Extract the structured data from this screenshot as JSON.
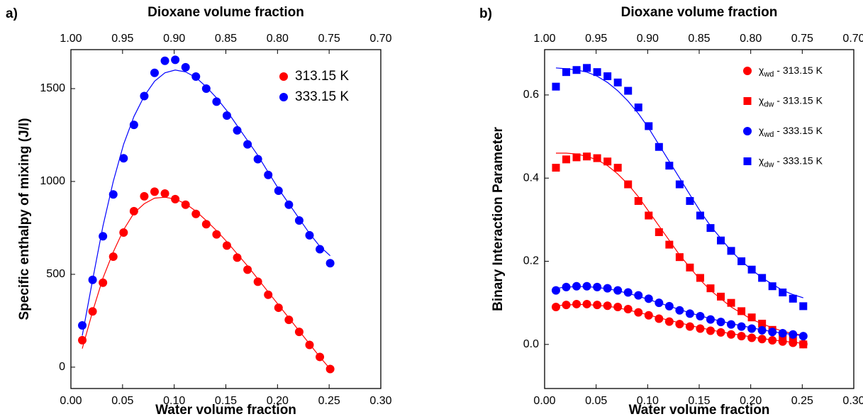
{
  "chart_data": [
    {
      "type": "scatter",
      "panel_label": "a)",
      "x2label": "Dioxane volume fraction",
      "xlabel": "Water volume fraction",
      "ylabel": "Specific enthalpy of mixing (J/l)",
      "x": [
        0.011,
        0.021,
        0.031,
        0.041,
        0.051,
        0.061,
        0.071,
        0.081,
        0.091,
        0.101,
        0.111,
        0.121,
        0.131,
        0.141,
        0.151,
        0.161,
        0.171,
        0.181,
        0.191,
        0.201,
        0.211,
        0.221,
        0.231,
        0.241,
        0.251
      ],
      "series": [
        {
          "name": "313.15 K",
          "color": "#ff0000",
          "marker": "circle",
          "values": [
            145,
            300,
            455,
            595,
            725,
            840,
            920,
            945,
            935,
            905,
            875,
            825,
            770,
            715,
            655,
            590,
            525,
            460,
            390,
            320,
            255,
            190,
            120,
            55,
            -10
          ],
          "fit": [
            100,
            300,
            480,
            620,
            740,
            830,
            880,
            910,
            915,
            905,
            880,
            840,
            790,
            735,
            675,
            610,
            545,
            475,
            405,
            335,
            265,
            195,
            125,
            55,
            -10
          ]
        },
        {
          "name": "333.15 K",
          "color": "#0000ff",
          "marker": "circle",
          "values": [
            225,
            470,
            705,
            930,
            1125,
            1305,
            1460,
            1585,
            1650,
            1655,
            1615,
            1565,
            1500,
            1430,
            1355,
            1275,
            1200,
            1120,
            1035,
            950,
            875,
            790,
            710,
            635,
            560
          ],
          "fit": [
            170,
            470,
            760,
            1000,
            1200,
            1350,
            1460,
            1540,
            1585,
            1600,
            1590,
            1560,
            1510,
            1450,
            1380,
            1300,
            1220,
            1140,
            1050,
            960,
            880,
            800,
            720,
            650,
            600
          ]
        }
      ],
      "xlim": [
        0,
        0.3
      ],
      "xticks": [
        {
          "value": 0,
          "label": "0.00"
        },
        {
          "value": 0.05,
          "label": "0.05"
        },
        {
          "value": 0.1,
          "label": "0.10"
        },
        {
          "value": 0.15,
          "label": "0.15"
        },
        {
          "value": 0.2,
          "label": "0.20"
        },
        {
          "value": 0.25,
          "label": "0.25"
        },
        {
          "value": 0.3,
          "label": "0.30"
        }
      ],
      "x2lim": [
        1.0,
        0.7
      ],
      "x2ticks": [
        {
          "value": 1.0,
          "label": "1.00"
        },
        {
          "value": 0.95,
          "label": "0.95"
        },
        {
          "value": 0.9,
          "label": "0.90"
        },
        {
          "value": 0.85,
          "label": "0.85"
        },
        {
          "value": 0.8,
          "label": "0.80"
        },
        {
          "value": 0.75,
          "label": "0.75"
        },
        {
          "value": 0.7,
          "label": "0.70"
        }
      ],
      "ylim": [
        -115,
        1710
      ],
      "yticks": [
        0,
        500,
        1000,
        1500
      ],
      "legend": "upper right"
    },
    {
      "type": "scatter",
      "panel_label": "b)",
      "x2label": "Dioxane volume fraction",
      "xlabel": "Water volume fraction",
      "ylabel": "Binary Interaction Parameter",
      "x": [
        0.011,
        0.021,
        0.031,
        0.041,
        0.051,
        0.061,
        0.071,
        0.081,
        0.091,
        0.101,
        0.111,
        0.121,
        0.131,
        0.141,
        0.151,
        0.161,
        0.171,
        0.181,
        0.191,
        0.201,
        0.211,
        0.221,
        0.231,
        0.241,
        0.251
      ],
      "series": [
        {
          "name": "χwd - 313.15 K",
          "color": "#ff0000",
          "marker": "circle",
          "values": [
            0.09,
            0.095,
            0.097,
            0.097,
            0.095,
            0.093,
            0.09,
            0.085,
            0.077,
            0.07,
            0.062,
            0.055,
            0.049,
            0.043,
            0.038,
            0.033,
            0.029,
            0.024,
            0.02,
            0.016,
            0.013,
            0.01,
            0.007,
            0.004,
            0.001
          ],
          "fit": [
            0.093,
            0.095,
            0.096,
            0.096,
            0.094,
            0.092,
            0.088,
            0.083,
            0.077,
            0.071,
            0.064,
            0.058,
            0.052,
            0.046,
            0.04,
            0.035,
            0.03,
            0.026,
            0.022,
            0.018,
            0.014,
            0.011,
            0.008,
            0.005,
            0.003
          ]
        },
        {
          "name": "χdw - 313.15 K",
          "color": "#ff0000",
          "marker": "square",
          "values": [
            0.425,
            0.445,
            0.45,
            0.452,
            0.448,
            0.44,
            0.425,
            0.385,
            0.345,
            0.31,
            0.27,
            0.24,
            0.21,
            0.185,
            0.16,
            0.135,
            0.115,
            0.1,
            0.08,
            0.065,
            0.05,
            0.035,
            0.02,
            0.01,
            0.0
          ],
          "fit": [
            0.46,
            0.46,
            0.458,
            0.452,
            0.444,
            0.43,
            0.41,
            0.385,
            0.355,
            0.32,
            0.285,
            0.25,
            0.215,
            0.185,
            0.155,
            0.13,
            0.11,
            0.09,
            0.075,
            0.06,
            0.05,
            0.04,
            0.032,
            0.026,
            0.022
          ]
        },
        {
          "name": "χwd - 333.15 K",
          "color": "#0000ff",
          "marker": "circle",
          "values": [
            0.13,
            0.138,
            0.14,
            0.14,
            0.138,
            0.135,
            0.13,
            0.125,
            0.118,
            0.11,
            0.1,
            0.092,
            0.082,
            0.074,
            0.068,
            0.06,
            0.054,
            0.048,
            0.043,
            0.038,
            0.034,
            0.03,
            0.027,
            0.024,
            0.02
          ],
          "fit": [
            0.135,
            0.138,
            0.139,
            0.139,
            0.137,
            0.134,
            0.129,
            0.123,
            0.116,
            0.108,
            0.1,
            0.092,
            0.084,
            0.076,
            0.069,
            0.062,
            0.056,
            0.05,
            0.045,
            0.04,
            0.035,
            0.031,
            0.027,
            0.024,
            0.021
          ]
        },
        {
          "name": "χdw - 333.15 K",
          "color": "#0000ff",
          "marker": "square",
          "values": [
            0.62,
            0.655,
            0.66,
            0.665,
            0.655,
            0.645,
            0.63,
            0.61,
            0.57,
            0.525,
            0.475,
            0.43,
            0.385,
            0.345,
            0.31,
            0.28,
            0.25,
            0.225,
            0.2,
            0.18,
            0.16,
            0.14,
            0.125,
            0.11,
            0.092
          ],
          "fit": [
            0.665,
            0.663,
            0.66,
            0.655,
            0.645,
            0.63,
            0.61,
            0.585,
            0.555,
            0.52,
            0.48,
            0.44,
            0.4,
            0.36,
            0.32,
            0.285,
            0.255,
            0.225,
            0.2,
            0.18,
            0.16,
            0.145,
            0.13,
            0.12,
            0.112
          ]
        }
      ],
      "xlim": [
        0,
        0.3
      ],
      "xticks": [
        {
          "value": 0,
          "label": "0.00"
        },
        {
          "value": 0.05,
          "label": "0.05"
        },
        {
          "value": 0.1,
          "label": "0.10"
        },
        {
          "value": 0.15,
          "label": "0.15"
        },
        {
          "value": 0.2,
          "label": "0.20"
        },
        {
          "value": 0.25,
          "label": "0.25"
        },
        {
          "value": 0.3,
          "label": "0.30"
        }
      ],
      "x2lim": [
        1.0,
        0.7
      ],
      "x2ticks": [
        {
          "value": 1.0,
          "label": "1.00"
        },
        {
          "value": 0.95,
          "label": "0.95"
        },
        {
          "value": 0.9,
          "label": "0.90"
        },
        {
          "value": 0.85,
          "label": "0.85"
        },
        {
          "value": 0.8,
          "label": "0.80"
        },
        {
          "value": 0.75,
          "label": "0.75"
        },
        {
          "value": 0.7,
          "label": "0.70"
        }
      ],
      "ylim": [
        -0.106,
        0.709
      ],
      "yticks": [
        {
          "value": 0,
          "label": "0.0"
        },
        {
          "value": 0.2,
          "label": "0.2"
        },
        {
          "value": 0.4,
          "label": "0.4"
        },
        {
          "value": 0.6,
          "label": "0.6"
        }
      ],
      "legend": "upper right"
    }
  ]
}
